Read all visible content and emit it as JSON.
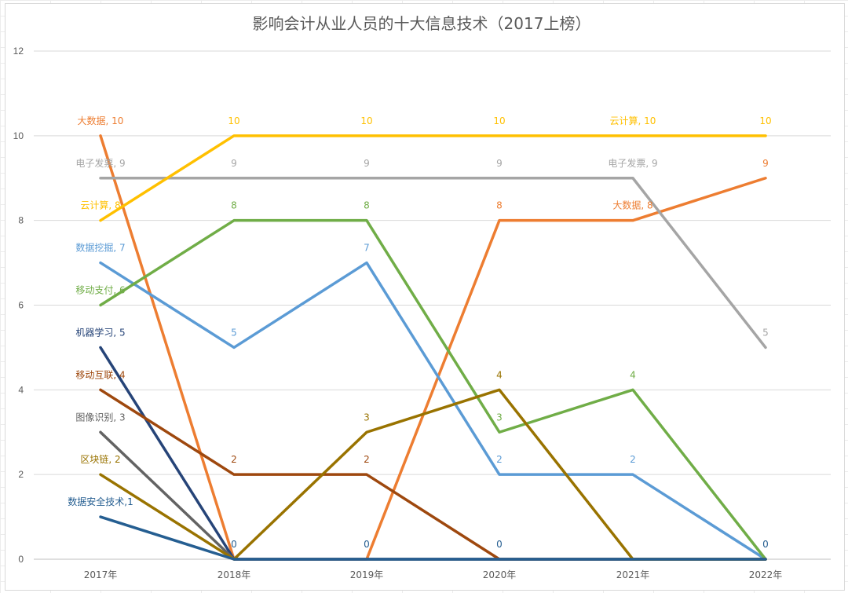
{
  "chart_data": {
    "type": "line",
    "title": "影响会计从业人员的十大信息技术（2017上榜）",
    "categories": [
      "2017年",
      "2018年",
      "2019年",
      "2020年",
      "2021年",
      "2022年"
    ],
    "ylim": [
      0,
      12
    ],
    "yticks": [
      0,
      2,
      4,
      6,
      8,
      10,
      12
    ],
    "grid": true,
    "legend": "none",
    "series": [
      {
        "name": "大数据",
        "color": "#ED7D31",
        "values": [
          10,
          0,
          0,
          8,
          8,
          9
        ]
      },
      {
        "name": "电子发票",
        "color": "#A5A5A5",
        "values": [
          9,
          9,
          9,
          9,
          9,
          5
        ]
      },
      {
        "name": "云计算",
        "color": "#FFC000",
        "values": [
          8,
          10,
          10,
          10,
          10,
          10
        ]
      },
      {
        "name": "数据挖掘",
        "color": "#5B9BD5",
        "values": [
          7,
          5,
          7,
          2,
          2,
          0
        ]
      },
      {
        "name": "移动支付",
        "color": "#70AD47",
        "values": [
          6,
          8,
          8,
          3,
          4,
          0
        ]
      },
      {
        "name": "机器学习",
        "color": "#264478",
        "values": [
          5,
          0,
          0,
          0,
          0,
          0
        ]
      },
      {
        "name": "移动互联",
        "color": "#9E480E",
        "values": [
          4,
          2,
          2,
          0,
          0,
          0
        ]
      },
      {
        "name": "图像识别",
        "color": "#636363",
        "values": [
          3,
          0,
          0,
          0,
          0,
          0
        ]
      },
      {
        "name": "区块链",
        "color": "#997300",
        "values": [
          2,
          0,
          3,
          4,
          0,
          0
        ]
      },
      {
        "name": "数据安全技术",
        "color": "#255E91",
        "values": [
          1,
          0,
          0,
          0,
          0,
          0
        ]
      }
    ],
    "data_labels": [
      {
        "series": 0,
        "index": 0,
        "text": "大数据, 10"
      },
      {
        "series": 1,
        "index": 0,
        "text": "电子发票, 9"
      },
      {
        "series": 2,
        "index": 0,
        "text": "云计算, 8"
      },
      {
        "series": 3,
        "index": 0,
        "text": "数据挖掘, 7"
      },
      {
        "series": 4,
        "index": 0,
        "text": "移动支付, 6"
      },
      {
        "series": 5,
        "index": 0,
        "text": "机器学习, 5"
      },
      {
        "series": 6,
        "index": 0,
        "text": "移动互联, 4"
      },
      {
        "series": 7,
        "index": 0,
        "text": "图像识别, 3"
      },
      {
        "series": 8,
        "index": 0,
        "text": "区块链, 2"
      },
      {
        "series": 9,
        "index": 0,
        "text": "数据安全技术,1"
      },
      {
        "series": 2,
        "index": 1,
        "text": "10"
      },
      {
        "series": 2,
        "index": 2,
        "text": "10"
      },
      {
        "series": 2,
        "index": 3,
        "text": "10"
      },
      {
        "series": 2,
        "index": 4,
        "text": "云计算, 10"
      },
      {
        "series": 2,
        "index": 5,
        "text": "10"
      },
      {
        "series": 1,
        "index": 1,
        "text": "9"
      },
      {
        "series": 1,
        "index": 2,
        "text": "9"
      },
      {
        "series": 1,
        "index": 3,
        "text": "9"
      },
      {
        "series": 1,
        "index": 4,
        "text": "电子发票, 9"
      },
      {
        "series": 1,
        "index": 5,
        "text": "5"
      },
      {
        "series": 0,
        "index": 3,
        "text": "8"
      },
      {
        "series": 0,
        "index": 4,
        "text": "大数据, 8"
      },
      {
        "series": 0,
        "index": 5,
        "text": "9"
      },
      {
        "series": 4,
        "index": 1,
        "text": "8"
      },
      {
        "series": 4,
        "index": 2,
        "text": "8"
      },
      {
        "series": 4,
        "index": 3,
        "text": "3"
      },
      {
        "series": 4,
        "index": 4,
        "text": "4"
      },
      {
        "series": 3,
        "index": 1,
        "text": "5"
      },
      {
        "series": 3,
        "index": 2,
        "text": "7"
      },
      {
        "series": 3,
        "index": 3,
        "text": "2"
      },
      {
        "series": 3,
        "index": 4,
        "text": "2"
      },
      {
        "series": 6,
        "index": 1,
        "text": "2"
      },
      {
        "series": 6,
        "index": 2,
        "text": "2"
      },
      {
        "series": 8,
        "index": 2,
        "text": "3"
      },
      {
        "series": 8,
        "index": 3,
        "text": "4"
      },
      {
        "series": 9,
        "index": 1,
        "text": "0"
      },
      {
        "series": 9,
        "index": 2,
        "text": "0"
      },
      {
        "series": 9,
        "index": 3,
        "text": "0"
      },
      {
        "series": 9,
        "index": 5,
        "text": "0"
      }
    ]
  }
}
